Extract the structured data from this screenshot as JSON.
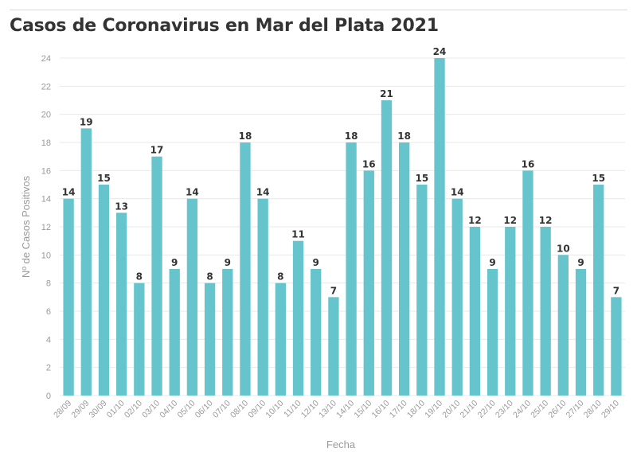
{
  "title": "Casos de Coronavirus en Mar del Plata 2021",
  "colors": {
    "bar": "#66c5cc",
    "grid": "#e8e8e8",
    "title": "#333333"
  },
  "chart_data": {
    "type": "bar",
    "title": "Casos de Coronavirus en Mar del Plata 2021",
    "xlabel": "Fecha",
    "ylabel": "Nº de Casos Positivos",
    "ylim": [
      0,
      24
    ],
    "yticks": [
      0,
      2,
      4,
      6,
      8,
      10,
      12,
      14,
      16,
      18,
      20,
      22,
      24
    ],
    "grid": true,
    "data_labels": true,
    "categories": [
      "28/09",
      "29/09",
      "30/09",
      "01/10",
      "02/10",
      "03/10",
      "04/10",
      "05/10",
      "06/10",
      "07/10",
      "08/10",
      "09/10",
      "10/10",
      "11/10",
      "12/10",
      "13/10",
      "14/10",
      "15/10",
      "16/10",
      "17/10",
      "18/10",
      "19/10",
      "20/10",
      "21/10",
      "22/10",
      "23/10",
      "24/10",
      "25/10",
      "26/10",
      "27/10",
      "28/10",
      "29/10"
    ],
    "values": [
      14,
      19,
      15,
      13,
      8,
      17,
      9,
      14,
      8,
      9,
      18,
      14,
      8,
      11,
      9,
      7,
      18,
      16,
      21,
      18,
      15,
      24,
      14,
      12,
      9,
      12,
      16,
      12,
      10,
      9,
      15,
      7
    ]
  }
}
